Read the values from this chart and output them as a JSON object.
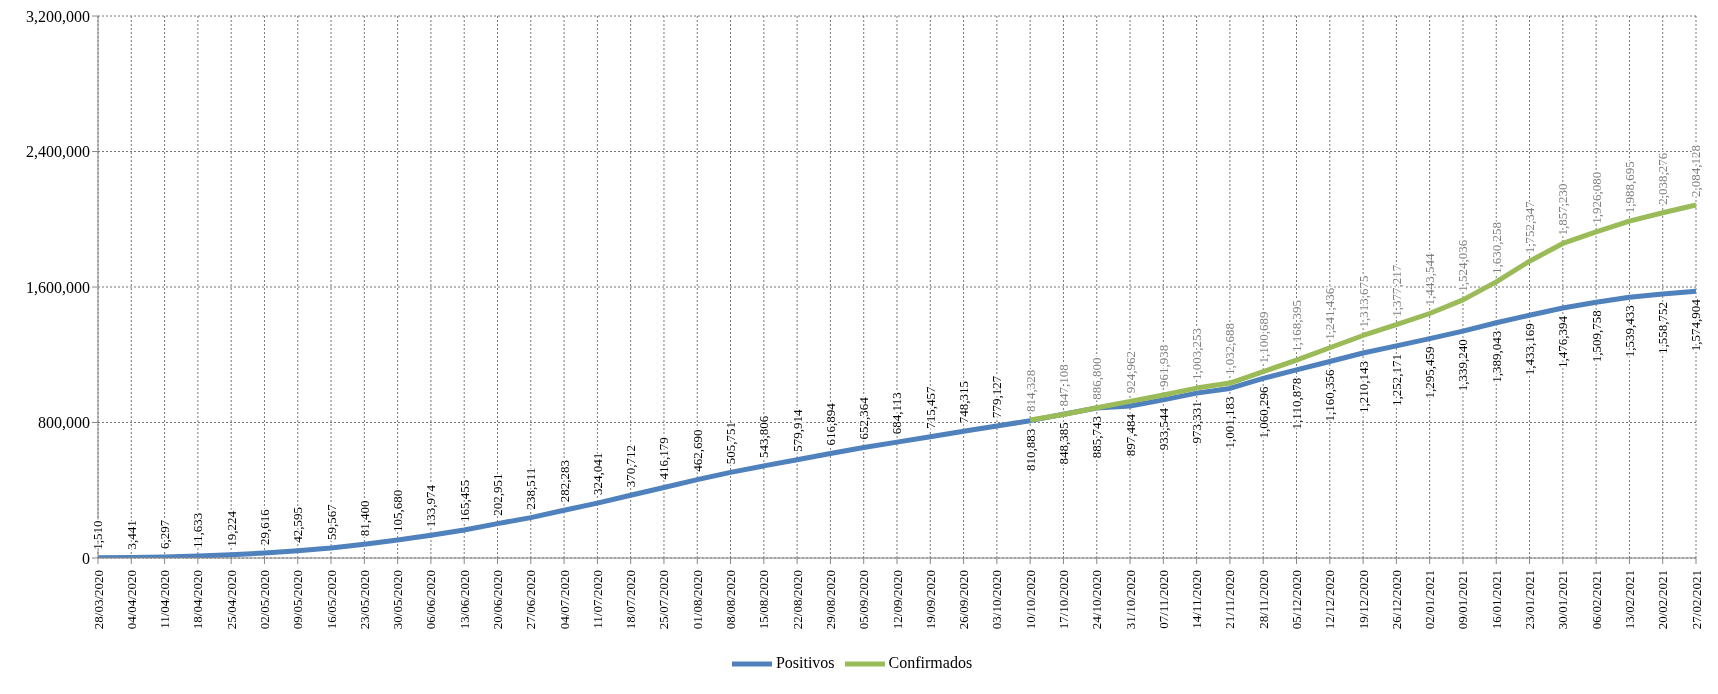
{
  "chart_data": {
    "type": "line",
    "categories": [
      "28/03/2020",
      "04/04/2020",
      "11/04/2020",
      "18/04/2020",
      "25/04/2020",
      "02/05/2020",
      "09/05/2020",
      "16/05/2020",
      "23/05/2020",
      "30/05/2020",
      "06/06/2020",
      "13/06/2020",
      "20/06/2020",
      "27/06/2020",
      "04/07/2020",
      "11/07/2020",
      "18/07/2020",
      "25/07/2020",
      "01/08/2020",
      "08/08/2020",
      "15/08/2020",
      "22/08/2020",
      "29/08/2020",
      "05/09/2020",
      "12/09/2020",
      "19/09/2020",
      "26/09/2020",
      "03/10/2020",
      "10/10/2020",
      "17/10/2020",
      "24/10/2020",
      "31/10/2020",
      "07/11/2020",
      "14/11/2020",
      "21/11/2020",
      "28/11/2020",
      "05/12/2020",
      "12/12/2020",
      "19/12/2020",
      "26/12/2020",
      "02/01/2021",
      "09/01/2021",
      "16/01/2021",
      "23/01/2021",
      "30/01/2021",
      "06/02/2021",
      "13/02/2021",
      "20/02/2021",
      "27/02/2021"
    ],
    "series": [
      {
        "name": "Positivos",
        "color": "#4f81bd",
        "values": [
          1510,
          3441,
          6297,
          11633,
          19224,
          29616,
          42595,
          59567,
          81400,
          105680,
          133974,
          165455,
          202951,
          238511,
          282283,
          324041,
          370712,
          416179,
          462690,
          505751,
          543806,
          579914,
          616894,
          652364,
          684113,
          715457,
          748315,
          779127,
          810883,
          848385,
          885743,
          897484,
          933544,
          973331,
          1001183,
          1060296,
          1110878,
          1160356,
          1210143,
          1252171,
          1295459,
          1339240,
          1389043,
          1433169,
          1476394,
          1509758,
          1539433,
          1558752,
          1574904
        ],
        "value_labels": [
          "1,510",
          "3,441",
          "6,297",
          "11,633",
          "19,224",
          "29,616",
          "42,595",
          "59,567",
          "81,400",
          "105,680",
          "133,974",
          "165,455",
          "202,951",
          "238,511",
          "282,283",
          "324,041",
          "370,712",
          "416,179",
          "462,690",
          "505,751",
          "543,806",
          "579,914",
          "616,894",
          "652,364",
          "684,113",
          "715,457",
          "748,315",
          "779,127",
          "810,883",
          "848,385",
          "885,743",
          "897,484",
          "933,544",
          "973,331",
          "1,001,183",
          "1,060,296",
          "1,110,878",
          "1,160,356",
          "1,210,143",
          "1,252,171",
          "1,295,459",
          "1,339,240",
          "1,389,043",
          "1,433,169",
          "1,476,394",
          "1,509,758",
          "1,539,433",
          "1,558,752",
          "1,574,904"
        ]
      },
      {
        "name": "Confirmados",
        "color": "#9bbb59",
        "values": [
          null,
          null,
          null,
          null,
          null,
          null,
          null,
          null,
          null,
          null,
          null,
          null,
          null,
          null,
          null,
          null,
          null,
          null,
          null,
          null,
          null,
          null,
          null,
          null,
          null,
          null,
          null,
          null,
          814328,
          847108,
          886800,
          924962,
          961938,
          1003253,
          1032688,
          1100689,
          1168395,
          1241436,
          1313675,
          1377217,
          1443544,
          1524036,
          1630258,
          1752347,
          1857230,
          1926080,
          1988695,
          2038276,
          2084128
        ],
        "value_labels": [
          null,
          null,
          null,
          null,
          null,
          null,
          null,
          null,
          null,
          null,
          null,
          null,
          null,
          null,
          null,
          null,
          null,
          null,
          null,
          null,
          null,
          null,
          null,
          null,
          null,
          null,
          null,
          null,
          "814,328",
          "847,108",
          "886,800",
          "924,962",
          "961,938",
          "1,003,253",
          "1,032,688",
          "1,100,689",
          "1,168,395",
          "1,241,436",
          "1,313,675",
          "1,377,217",
          "1,443,544",
          "1,524,036",
          "1,630,258",
          "1,752,347",
          "1,857,230",
          "1,926,080",
          "1,988,695",
          "2,038,276",
          "2,084,128"
        ]
      }
    ],
    "ylim": [
      0,
      3200000
    ],
    "yticks": [
      {
        "value": 0,
        "label": "0"
      },
      {
        "value": 800000,
        "label": "800,000"
      },
      {
        "value": 1600000,
        "label": "1,600,000"
      },
      {
        "value": 2400000,
        "label": "2,400,000"
      },
      {
        "value": 3200000,
        "label": "3,200,000"
      }
    ],
    "grid": true,
    "legend": "bottom",
    "marker": "none",
    "line_style": "solid"
  }
}
